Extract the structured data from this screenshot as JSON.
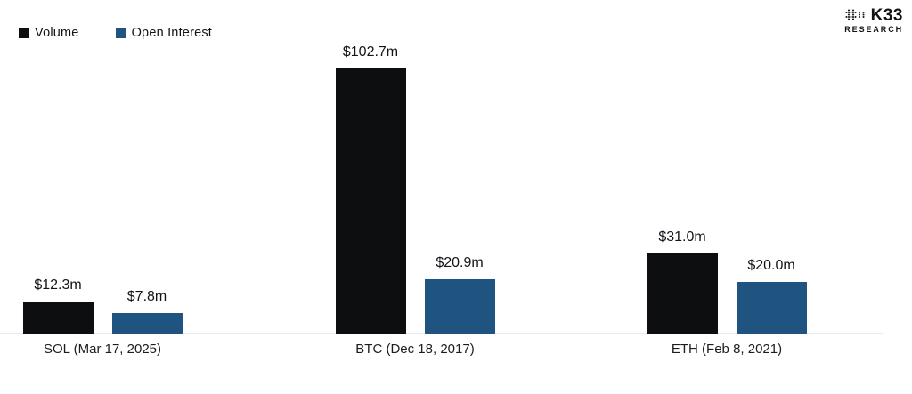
{
  "legend": {
    "position": "top-left"
  },
  "logo": {
    "brand": "K33",
    "sub": "RESEARCH"
  },
  "colors": {
    "volume": "#0d0e10",
    "open_interest": "#1f5480",
    "baseline": "#e8eaec",
    "bottom_rule": "#a7bfd6",
    "text": "#121419",
    "background": "#ffffff"
  },
  "chart_data": {
    "type": "bar",
    "title": "",
    "xlabel": "",
    "ylabel": "",
    "unit": "$m",
    "grid": false,
    "y_axis_visible": false,
    "legend_position": "top-left",
    "ylim": [
      0,
      110
    ],
    "categories": [
      "SOL (Mar 17, 2025)",
      "BTC (Dec 18, 2017)",
      "ETH (Feb 8, 2021)"
    ],
    "series": [
      {
        "name": "Volume",
        "color": "#0d0e10",
        "values": [
          12.3,
          102.7,
          31.0
        ],
        "labels": [
          "$12.3m",
          "$102.7m",
          "$31.0m"
        ]
      },
      {
        "name": "Open Interest",
        "color": "#1f5480",
        "values": [
          7.8,
          20.9,
          20.0
        ],
        "labels": [
          "$7.8m",
          "$20.9m",
          "$20.0m"
        ]
      }
    ]
  }
}
